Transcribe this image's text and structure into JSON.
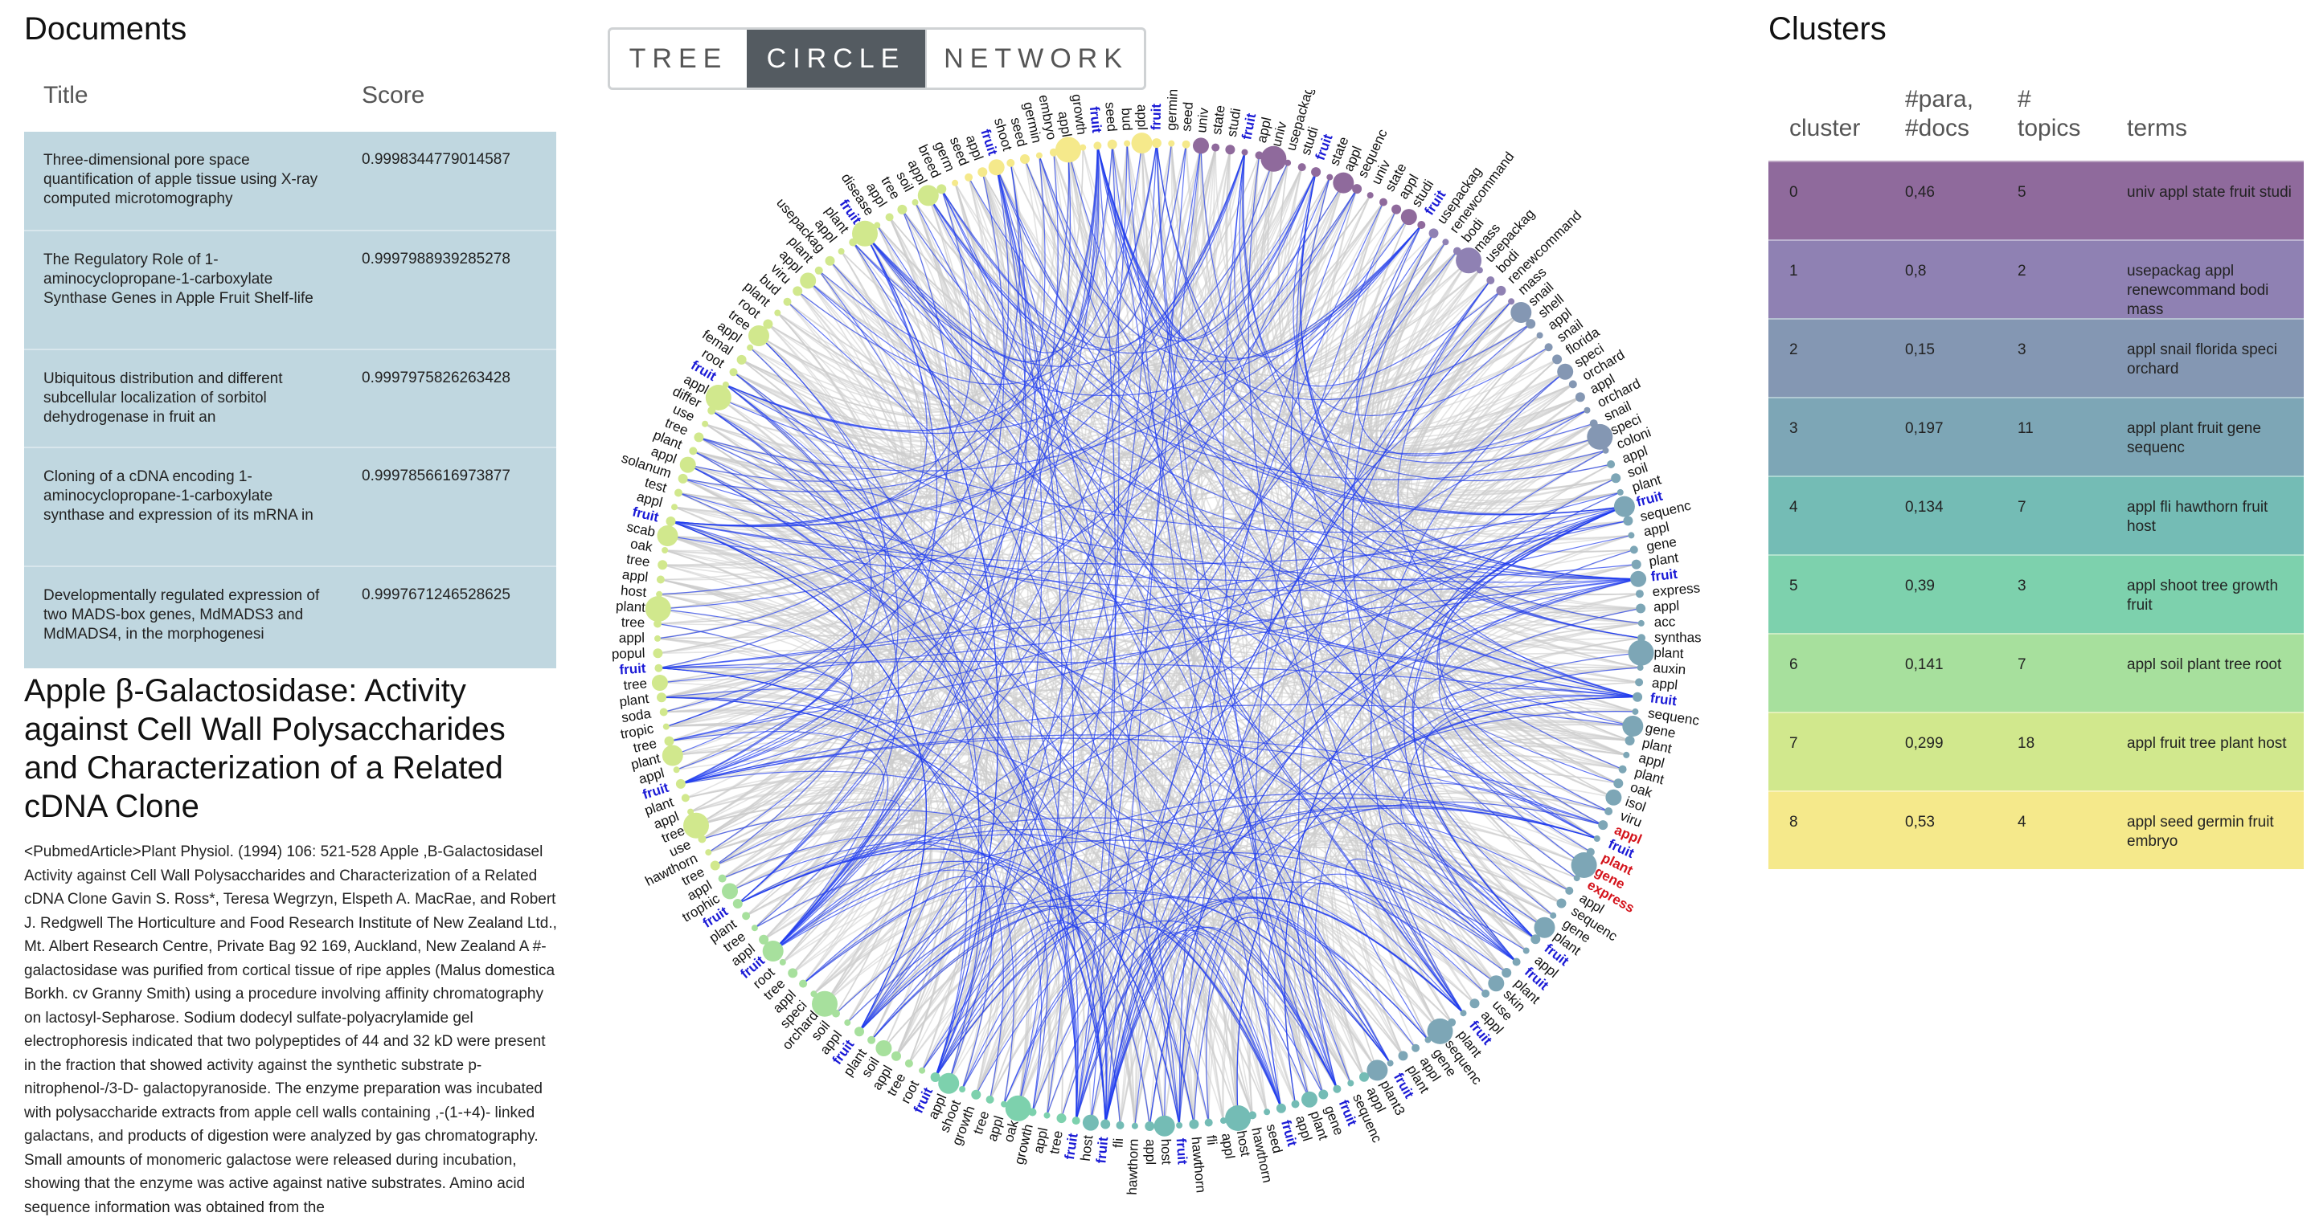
{
  "documents": {
    "heading": "Documents",
    "col_title": "Title",
    "col_score": "Score",
    "rows": [
      {
        "title": "Three-dimensional pore space quantification of apple tissue using X-ray computed microtomography",
        "score": "0.9998344779014587"
      },
      {
        "title": "The Regulatory Role of 1-aminocyclopropane-1-carboxylate Synthase Genes in Apple Fruit Shelf-life",
        "score": "0.9997988939285278"
      },
      {
        "title": "Ubiquitous distribution and different subcellular localization of sorbitol dehydrogenase in fruit an",
        "score": "0.9997975826263428"
      },
      {
        "title": "Cloning of a cDNA encoding 1-aminocyclopropane-1-carboxylate synthase and expression of its mRNA in",
        "score": "0.9997856616973877"
      },
      {
        "title": "Developmentally regulated expression of two MADS-box genes, MdMADS3 and MdMADS4, in the morphogenesi",
        "score": "0.9997671246528625"
      }
    ]
  },
  "article": {
    "title": "Apple β-Galactosidase: Activity against Cell Wall Polysaccharides and Characterization of a Related cDNA Clone",
    "body": "<PubmedArticle>Plant Physiol. (1994) 106: 521-528 Apple ,B-Galactosidasel Activity against Cell Wall Polysaccharides and Characterization of a Related cDNA Clone Gavin S. Ross*, Teresa Wegrzyn, Elspeth A. MacRae, and Robert J. Redgwell The Horticulture and Food Research Institute of New Zealand Ltd., Mt. Albert Research Centre, Private Bag 92 169, Auckland, New Zealand A #-galactosidase was purified from cortical tissue of ripe apples (Malus domestica Borkh. cv Granny Smith) using a procedure involving affinity chromatography on lactosyl-Sepharose. Sodium dodecyl sulfate-polyacrylamide gel electrophoresis indicated that two polypeptides of 44 and 32 kD were present in the fraction that showed activity against the synthetic substrate p-nitrophenol-/3-D- galactopyranoside. The enzyme preparation was incubated with polysaccharide extracts from apple cell walls containing ,-(1-+4)- linked galactans, and products of digestion were analyzed by gas chromatography. Small amounts of monomeric galactose were released during incubation, showing that the enzyme was active against native substrates. Amino acid sequence information was obtained from the"
  },
  "tabs": [
    {
      "label": "TREE",
      "active": false
    },
    {
      "label": "CIRCLE",
      "active": true
    },
    {
      "label": "NETWORK",
      "active": false
    }
  ],
  "graph": {
    "edge_color": "#cccccc",
    "highlight_color": "#1f3cf0",
    "highlight_term_color": "#1a1ad6",
    "selected_term_color": "#d4141c",
    "labels": [
      {
        "t": "univ",
        "c": 0
      },
      {
        "t": "state",
        "c": 0
      },
      {
        "t": "studi",
        "c": 0
      },
      {
        "t": "fruit",
        "c": 0,
        "h": 1
      },
      {
        "t": "appl",
        "c": 0
      },
      {
        "t": "univ",
        "c": 0
      },
      {
        "t": "usepackag",
        "c": 0
      },
      {
        "t": "studi",
        "c": 0
      },
      {
        "t": "fruit",
        "c": 0,
        "h": 1
      },
      {
        "t": "state",
        "c": 0
      },
      {
        "t": "appl",
        "c": 0
      },
      {
        "t": "sequenc",
        "c": 0
      },
      {
        "t": "univ",
        "c": 0
      },
      {
        "t": "state",
        "c": 0
      },
      {
        "t": "appl",
        "c": 0
      },
      {
        "t": "studi",
        "c": 0
      },
      {
        "t": "fruit",
        "c": 0,
        "h": 1
      },
      {
        "t": "usepackag",
        "c": 1
      },
      {
        "t": "renewcommand",
        "c": 1
      },
      {
        "t": "bodi",
        "c": 1
      },
      {
        "t": "mass",
        "c": 1
      },
      {
        "t": "usepackag",
        "c": 1
      },
      {
        "t": "bodi",
        "c": 1
      },
      {
        "t": "renewcommand",
        "c": 1
      },
      {
        "t": "mass",
        "c": 1
      },
      {
        "t": "snail",
        "c": 2
      },
      {
        "t": "shell",
        "c": 2
      },
      {
        "t": "appl",
        "c": 2
      },
      {
        "t": "snail",
        "c": 2
      },
      {
        "t": "florida",
        "c": 2
      },
      {
        "t": "speci",
        "c": 2
      },
      {
        "t": "orchard",
        "c": 2
      },
      {
        "t": "appl",
        "c": 2
      },
      {
        "t": "orchard",
        "c": 2
      },
      {
        "t": "snail",
        "c": 2
      },
      {
        "t": "speci",
        "c": 2
      },
      {
        "t": "coloni",
        "c": 2
      },
      {
        "t": "appl",
        "c": 3
      },
      {
        "t": "soil",
        "c": 3
      },
      {
        "t": "plant",
        "c": 3
      },
      {
        "t": "fruit",
        "c": 3,
        "h": 1
      },
      {
        "t": "sequenc",
        "c": 3
      },
      {
        "t": "appl",
        "c": 3
      },
      {
        "t": "gene",
        "c": 3
      },
      {
        "t": "plant",
        "c": 3
      },
      {
        "t": "fruit",
        "c": 3,
        "h": 1
      },
      {
        "t": "express",
        "c": 3
      },
      {
        "t": "appl",
        "c": 3
      },
      {
        "t": "acc",
        "c": 3
      },
      {
        "t": "synthas",
        "c": 3
      },
      {
        "t": "plant",
        "c": 3
      },
      {
        "t": "auxin",
        "c": 3
      },
      {
        "t": "appl",
        "c": 3
      },
      {
        "t": "fruit",
        "c": 3,
        "h": 1
      },
      {
        "t": "sequenc",
        "c": 3
      },
      {
        "t": "gene",
        "c": 3
      },
      {
        "t": "plant",
        "c": 3
      },
      {
        "t": "appl",
        "c": 3
      },
      {
        "t": "plant",
        "c": 3
      },
      {
        "t": "oak",
        "c": 3
      },
      {
        "t": "isol",
        "c": 3
      },
      {
        "t": "viru",
        "c": 3
      },
      {
        "t": "appl",
        "c": 3,
        "s": 1
      },
      {
        "t": "fruit",
        "c": 3,
        "h": 1
      },
      {
        "t": "plant",
        "c": 3,
        "s": 1
      },
      {
        "t": "gene",
        "c": 3,
        "s": 1
      },
      {
        "t": "express",
        "c": 3,
        "s": 1
      },
      {
        "t": "appl",
        "c": 3
      },
      {
        "t": "sequenc",
        "c": 3
      },
      {
        "t": "gene",
        "c": 3
      },
      {
        "t": "plant",
        "c": 3
      },
      {
        "t": "fruit",
        "c": 3,
        "h": 1
      },
      {
        "t": "appl",
        "c": 3
      },
      {
        "t": "fruit",
        "c": 3,
        "h": 1
      },
      {
        "t": "plant",
        "c": 3
      },
      {
        "t": "skin",
        "c": 3
      },
      {
        "t": "use",
        "c": 3
      },
      {
        "t": "appl",
        "c": 3
      },
      {
        "t": "fruit",
        "c": 3,
        "h": 1
      },
      {
        "t": "plant",
        "c": 3
      },
      {
        "t": "sequenc",
        "c": 3
      },
      {
        "t": "gene",
        "c": 3
      },
      {
        "t": "appl",
        "c": 3
      },
      {
        "t": "plant",
        "c": 3
      },
      {
        "t": "fruit",
        "c": 3,
        "h": 1
      },
      {
        "t": "plant3",
        "c": 3
      },
      {
        "t": "appl",
        "c": 4
      },
      {
        "t": "sequenc",
        "c": 4
      },
      {
        "t": "fruit",
        "c": 4,
        "h": 1
      },
      {
        "t": "gene",
        "c": 4
      },
      {
        "t": "plant",
        "c": 4
      },
      {
        "t": "appl",
        "c": 4
      },
      {
        "t": "fruit",
        "c": 4,
        "h": 1
      },
      {
        "t": "seed",
        "c": 4
      },
      {
        "t": "hawthorn",
        "c": 4
      },
      {
        "t": "host",
        "c": 4
      },
      {
        "t": "appl",
        "c": 4
      },
      {
        "t": "fli",
        "c": 4
      },
      {
        "t": "hawthorn",
        "c": 4
      },
      {
        "t": "fruit",
        "c": 4,
        "h": 1
      },
      {
        "t": "host",
        "c": 4
      },
      {
        "t": "appl",
        "c": 4
      },
      {
        "t": "hawthorn",
        "c": 4
      },
      {
        "t": "fli",
        "c": 4
      },
      {
        "t": "fruit",
        "c": 4,
        "h": 1
      },
      {
        "t": "host",
        "c": 4
      },
      {
        "t": "fruit",
        "c": 5,
        "h": 1
      },
      {
        "t": "tree",
        "c": 5
      },
      {
        "t": "appl",
        "c": 5
      },
      {
        "t": "growth",
        "c": 5
      },
      {
        "t": "oak",
        "c": 5
      },
      {
        "t": "appl",
        "c": 5
      },
      {
        "t": "tree",
        "c": 5
      },
      {
        "t": "growth",
        "c": 5
      },
      {
        "t": "shoot",
        "c": 5
      },
      {
        "t": "appl",
        "c": 5
      },
      {
        "t": "fruit",
        "c": 5,
        "h": 1
      },
      {
        "t": "root",
        "c": 6
      },
      {
        "t": "tree",
        "c": 6
      },
      {
        "t": "appl",
        "c": 6
      },
      {
        "t": "soil",
        "c": 6
      },
      {
        "t": "plant",
        "c": 6
      },
      {
        "t": "fruit",
        "c": 6,
        "h": 1
      },
      {
        "t": "appl",
        "c": 6
      },
      {
        "t": "soil",
        "c": 6
      },
      {
        "t": "orchard",
        "c": 6
      },
      {
        "t": "speci",
        "c": 6
      },
      {
        "t": "appl",
        "c": 6
      },
      {
        "t": "tree",
        "c": 6
      },
      {
        "t": "root",
        "c": 6
      },
      {
        "t": "fruit",
        "c": 6,
        "h": 1
      },
      {
        "t": "appl",
        "c": 6
      },
      {
        "t": "tree",
        "c": 6
      },
      {
        "t": "plant",
        "c": 6
      },
      {
        "t": "fruit",
        "c": 6,
        "h": 1
      },
      {
        "t": "trophic",
        "c": 6
      },
      {
        "t": "appl",
        "c": 6
      },
      {
        "t": "tree",
        "c": 7
      },
      {
        "t": "hawthorn",
        "c": 7
      },
      {
        "t": "use",
        "c": 7
      },
      {
        "t": "tree",
        "c": 7
      },
      {
        "t": "appl",
        "c": 7
      },
      {
        "t": "plant",
        "c": 7
      },
      {
        "t": "fruit",
        "c": 7,
        "h": 1
      },
      {
        "t": "appl",
        "c": 7
      },
      {
        "t": "plant",
        "c": 7
      },
      {
        "t": "tree",
        "c": 7
      },
      {
        "t": "tropic",
        "c": 7
      },
      {
        "t": "soda",
        "c": 7
      },
      {
        "t": "plant",
        "c": 7
      },
      {
        "t": "tree",
        "c": 7
      },
      {
        "t": "fruit",
        "c": 7,
        "h": 1
      },
      {
        "t": "popul",
        "c": 7
      },
      {
        "t": "appl",
        "c": 7
      },
      {
        "t": "tree",
        "c": 7
      },
      {
        "t": "plant",
        "c": 7
      },
      {
        "t": "host",
        "c": 7
      },
      {
        "t": "appl",
        "c": 7
      },
      {
        "t": "tree",
        "c": 7
      },
      {
        "t": "oak",
        "c": 7
      },
      {
        "t": "scab",
        "c": 7
      },
      {
        "t": "fruit",
        "c": 7,
        "h": 1
      },
      {
        "t": "appl",
        "c": 7
      },
      {
        "t": "test",
        "c": 7
      },
      {
        "t": "solanum",
        "c": 7
      },
      {
        "t": "appl",
        "c": 7
      },
      {
        "t": "plant",
        "c": 7
      },
      {
        "t": "tree",
        "c": 7
      },
      {
        "t": "use",
        "c": 7
      },
      {
        "t": "differ",
        "c": 7
      },
      {
        "t": "appl",
        "c": 7
      },
      {
        "t": "fruit",
        "c": 7,
        "h": 1
      },
      {
        "t": "root",
        "c": 7
      },
      {
        "t": "femal",
        "c": 7
      },
      {
        "t": "appl",
        "c": 7
      },
      {
        "t": "tree",
        "c": 7
      },
      {
        "t": "root",
        "c": 7
      },
      {
        "t": "plant",
        "c": 7
      },
      {
        "t": "bud",
        "c": 7
      },
      {
        "t": "viru",
        "c": 7
      },
      {
        "t": "appl",
        "c": 7
      },
      {
        "t": "plant",
        "c": 7
      },
      {
        "t": "usepackag",
        "c": 7
      },
      {
        "t": "appl",
        "c": 7
      },
      {
        "t": "plant",
        "c": 7
      },
      {
        "t": "fruit",
        "c": 7,
        "h": 1
      },
      {
        "t": "disease",
        "c": 7
      },
      {
        "t": "appl",
        "c": 7
      },
      {
        "t": "tree",
        "c": 7
      },
      {
        "t": "soil",
        "c": 7
      },
      {
        "t": "appl",
        "c": 7
      },
      {
        "t": "breed",
        "c": 7
      },
      {
        "t": "germ",
        "c": 8
      },
      {
        "t": "seed",
        "c": 8
      },
      {
        "t": "appl",
        "c": 8
      },
      {
        "t": "fruit",
        "c": 8,
        "h": 1
      },
      {
        "t": "shoot",
        "c": 8
      },
      {
        "t": "seed",
        "c": 8
      },
      {
        "t": "germin",
        "c": 8
      },
      {
        "t": "embryo",
        "c": 8
      },
      {
        "t": "appl",
        "c": 8
      },
      {
        "t": "growth",
        "c": 8
      },
      {
        "t": "fruit",
        "c": 8,
        "h": 1
      },
      {
        "t": "seed",
        "c": 8
      },
      {
        "t": "bud",
        "c": 8
      },
      {
        "t": "appl",
        "c": 8
      },
      {
        "t": "fruit",
        "c": 8,
        "h": 1
      },
      {
        "t": "germin",
        "c": 8
      },
      {
        "t": "seed",
        "c": 8
      }
    ]
  },
  "clusters": {
    "heading": "Clusters",
    "col_cluster": "cluster",
    "col_para": "#para, #docs",
    "col_topics": "# topics",
    "col_terms": "terms",
    "rows": [
      {
        "cluster": "0",
        "para": "0,46",
        "topics": "5",
        "terms": "univ appl state fruit studi",
        "color": "#8f6a9c"
      },
      {
        "cluster": "1",
        "para": "0,8",
        "topics": "2",
        "terms": "usepackag appl renewcommand bodi mass",
        "color": "#8f81b3"
      },
      {
        "cluster": "2",
        "para": "0,15",
        "topics": "3",
        "terms": "appl snail florida speci orchard",
        "color": "#8497b3"
      },
      {
        "cluster": "3",
        "para": "0,197",
        "topics": "11",
        "terms": "appl plant fruit gene sequenc",
        "color": "#7da6b6"
      },
      {
        "cluster": "4",
        "para": "0,134",
        "topics": "7",
        "terms": "appl fli hawthorn fruit host",
        "color": "#74bcb5"
      },
      {
        "cluster": "5",
        "para": "0,39",
        "topics": "3",
        "terms": "appl shoot tree growth fruit",
        "color": "#7dd1ad"
      },
      {
        "cluster": "6",
        "para": "0,141",
        "topics": "7",
        "terms": "appl soil plant tree root",
        "color": "#a7e09d"
      },
      {
        "cluster": "7",
        "para": "0,299",
        "topics": "18",
        "terms": "appl fruit tree plant host",
        "color": "#d1e88d"
      },
      {
        "cluster": "8",
        "para": "0,53",
        "topics": "4",
        "terms": "appl seed germin fruit embryo",
        "color": "#f5e98b"
      }
    ]
  }
}
